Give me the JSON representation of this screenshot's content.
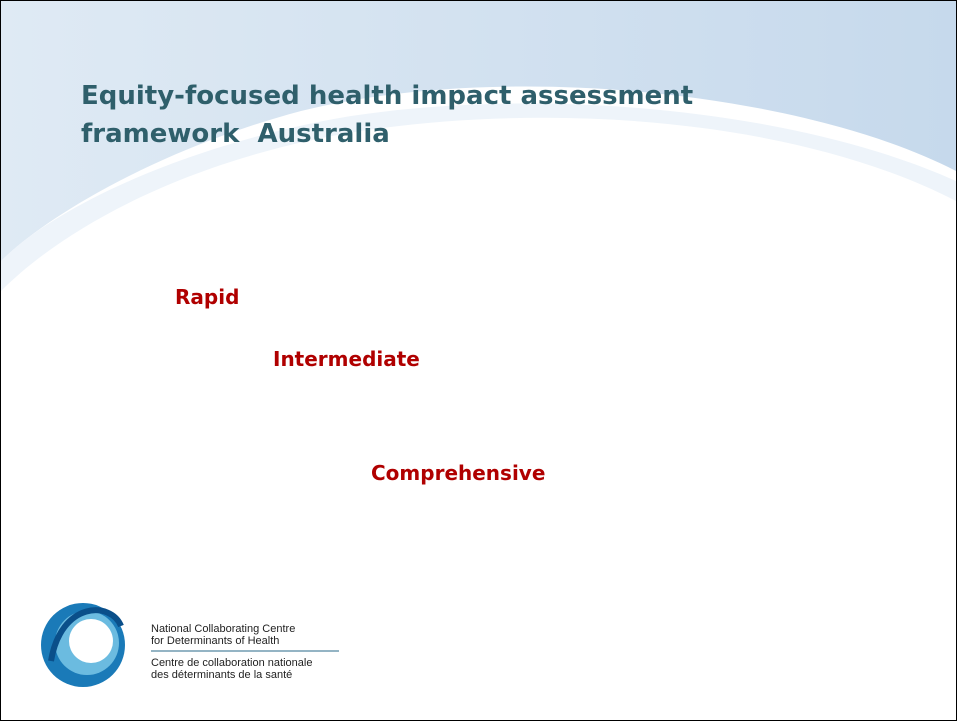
{
  "title": [
    "Equity-focused health impact assessment",
    "framework  Australia"
  ],
  "items": [
    "Rapid",
    "Intermediate",
    "Comprehensive"
  ],
  "logo": {
    "en": [
      "National Collaborating Centre",
      "for Determinants of Health"
    ],
    "fr": [
      "Centre de collaboration nationale",
      "des déterminants de la santé"
    ]
  }
}
